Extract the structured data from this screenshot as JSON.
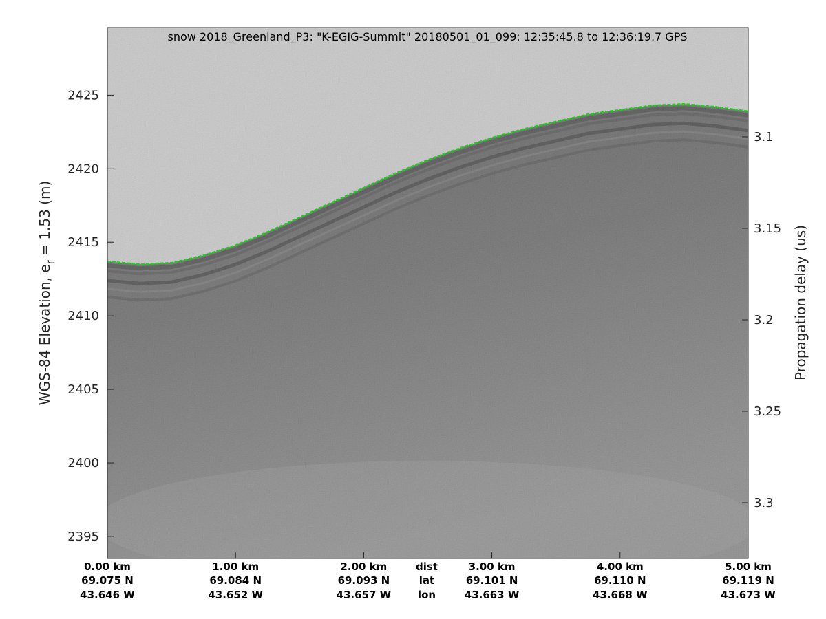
{
  "chart_data": {
    "type": "heatmap",
    "title": "snow 2018_Greenland_P3: \"K-EGIG-Summit\"  20180501_01_099: 12:35:45.8 to 12:36:19.7 GPS",
    "ylabel": {
      "main": "WGS-84 Elevation, e",
      "sub": "r",
      "rest": " = 1.53 (m)"
    },
    "ylabel_right": "Propagation delay (us)",
    "ylim": [
      2393.5,
      2429.6
    ],
    "yticks": [
      2395,
      2400,
      2405,
      2410,
      2415,
      2420,
      2425
    ],
    "yticks_right": [
      "3.1",
      "3.15",
      "3.2",
      "3.25",
      "3.3"
    ],
    "xlim_km": [
      0,
      5
    ],
    "x_axis_rows": [
      {
        "label": "dist",
        "values": [
          "0.00 km",
          "1.00 km",
          "2.00 km",
          "3.00 km",
          "4.00 km",
          "5.00 km"
        ]
      },
      {
        "label": "lat",
        "values": [
          "69.075 N",
          "69.084 N",
          "69.093 N",
          "69.101 N",
          "69.110 N",
          "69.119 N"
        ]
      },
      {
        "label": "lon",
        "values": [
          "43.646 W",
          "43.652 W",
          "43.657 W",
          "43.663 W",
          "43.668 W",
          "43.673 W"
        ]
      }
    ],
    "grid": false,
    "colormap": "gray",
    "surface_pick": {
      "color": "#22cc22",
      "x_km": [
        0,
        0.25,
        0.5,
        0.75,
        1.0,
        1.25,
        1.5,
        1.75,
        2.0,
        2.25,
        2.5,
        2.75,
        3.0,
        3.25,
        3.5,
        3.75,
        4.0,
        4.25,
        4.5,
        4.75,
        5.0
      ],
      "elevation_m": [
        2413.7,
        2413.5,
        2413.6,
        2414.1,
        2414.8,
        2415.7,
        2416.7,
        2417.7,
        2418.7,
        2419.7,
        2420.6,
        2421.4,
        2422.1,
        2422.7,
        2423.2,
        2423.7,
        2424.0,
        2424.3,
        2424.4,
        2424.2,
        2423.9
      ]
    }
  }
}
